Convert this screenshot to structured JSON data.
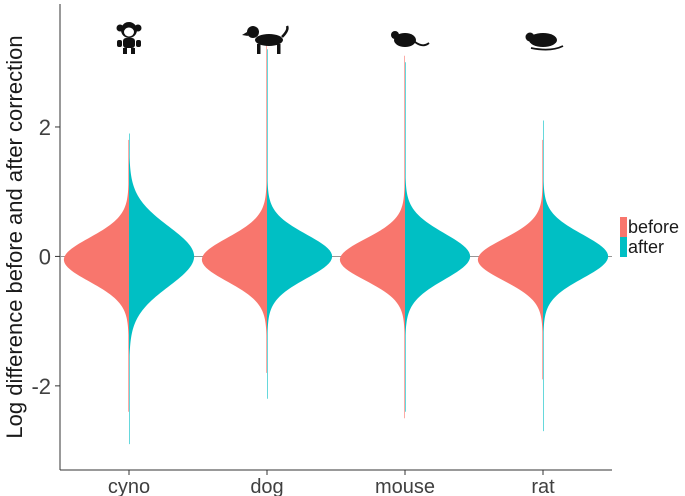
{
  "chart_data": {
    "type": "violin",
    "title": "",
    "xlabel": "",
    "ylabel": "Log difference before and after correction",
    "ylim": [
      -3.3,
      3.9
    ],
    "yticks": [
      -2,
      0,
      2
    ],
    "ytick_labels": [
      "-2",
      "0",
      "2"
    ],
    "categories": [
      "cyno",
      "dog",
      "mouse",
      "rat"
    ],
    "category_icons": [
      "monkey-icon",
      "dog-icon",
      "mouse-icon",
      "rat-icon"
    ],
    "legend": {
      "position": "right",
      "entries": [
        "before",
        "after"
      ]
    },
    "grid": false,
    "reference_line_y": 0,
    "series": [
      {
        "name": "before",
        "color": "#F8766D",
        "distributions": [
          {
            "category": "cyno",
            "min": -2.4,
            "max": 1.8,
            "peak": -0.05,
            "peak_halfwidth": 0.4
          },
          {
            "category": "dog",
            "min": -1.8,
            "max": 3.3,
            "peak": -0.05,
            "peak_halfwidth": 0.4
          },
          {
            "category": "mouse",
            "min": -2.5,
            "max": 3.1,
            "peak": -0.05,
            "peak_halfwidth": 0.38
          },
          {
            "category": "rat",
            "min": -1.9,
            "max": 1.8,
            "peak": -0.05,
            "peak_halfwidth": 0.38
          }
        ]
      },
      {
        "name": "after",
        "color": "#00BFC4",
        "distributions": [
          {
            "category": "cyno",
            "min": -2.9,
            "max": 1.9,
            "peak": 0.0,
            "peak_halfwidth": 0.55
          },
          {
            "category": "dog",
            "min": -2.2,
            "max": 3.2,
            "peak": 0.0,
            "peak_halfwidth": 0.4
          },
          {
            "category": "mouse",
            "min": -2.4,
            "max": 3.0,
            "peak": 0.0,
            "peak_halfwidth": 0.42
          },
          {
            "category": "rat",
            "min": -2.7,
            "max": 2.1,
            "peak": 0.0,
            "peak_halfwidth": 0.4
          }
        ]
      }
    ]
  }
}
